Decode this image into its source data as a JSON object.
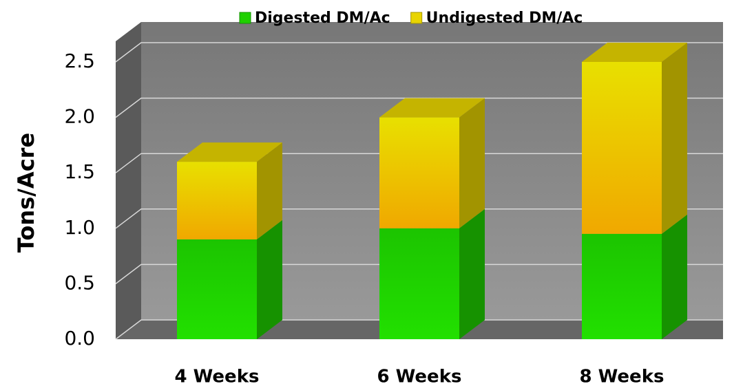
{
  "chart_data": {
    "type": "stacked_bar_3d",
    "categories": [
      "4 Weeks",
      "6 Weeks",
      "8 Weeks"
    ],
    "series": [
      {
        "name": "Digested DM/Ac",
        "color": "#1fd000",
        "values": [
          0.9,
          1.0,
          0.95
        ]
      },
      {
        "name": "Undigested DM/Ac",
        "color": "#e8d400",
        "values": [
          0.7,
          1.0,
          1.55
        ]
      }
    ],
    "y_label": "Tons/Acre",
    "ylim": [
      0,
      2.5
    ],
    "yticks": [
      {
        "value": 0,
        "label": "0.0"
      },
      0.5,
      {
        "value": 1,
        "label": "1.0"
      },
      1.5,
      {
        "value": 2,
        "label": "2.0"
      },
      2.5
    ],
    "grid": true,
    "legend": "top"
  }
}
